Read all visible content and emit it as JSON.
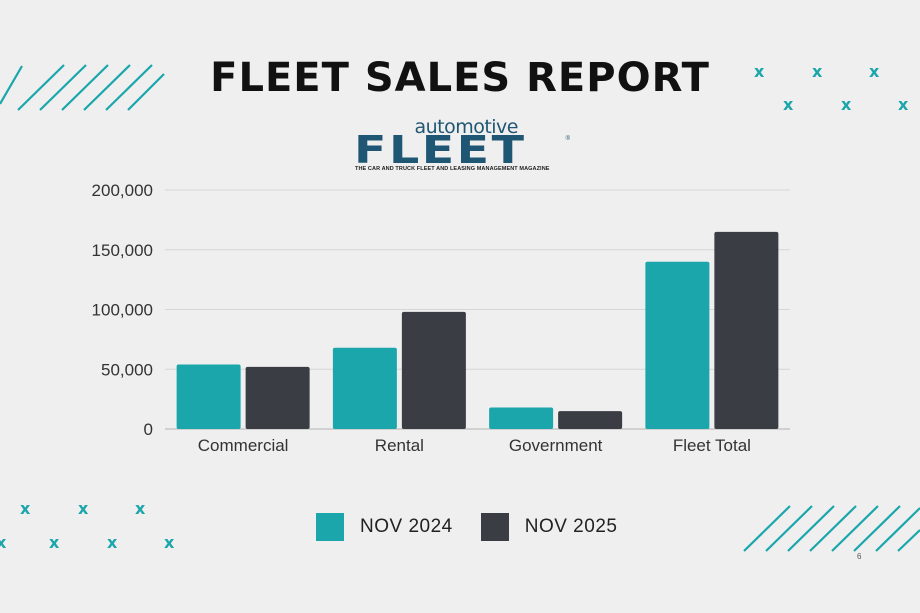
{
  "title": "FLEET SALES REPORT",
  "logo": {
    "line1": "automotive",
    "line2": "FLEET",
    "tagline": "THE CAR AND TRUCK FLEET AND LEASING MANAGEMENT MAGAZINE"
  },
  "page_number": "6",
  "colors": {
    "teal": "#1aa6ab",
    "dark": "#3a3d44",
    "background": "#efefef"
  },
  "chart_data": {
    "type": "bar",
    "title": "FLEET SALES REPORT",
    "categories": [
      "Commercial",
      "Rental",
      "Government",
      "Fleet Total"
    ],
    "series": [
      {
        "name": "NOV 2024",
        "color": "#1aa6ab",
        "values": [
          54000,
          68000,
          18000,
          140000
        ]
      },
      {
        "name": "NOV 2025",
        "color": "#3a3d44",
        "values": [
          52000,
          98000,
          15000,
          165000
        ]
      }
    ],
    "yticks": [
      0,
      50000,
      100000,
      150000,
      200000
    ],
    "ytick_labels": [
      "0",
      "50,000",
      "100,000",
      "150,000",
      "200,000"
    ],
    "ylim": [
      0,
      200000
    ],
    "xlabel": "",
    "ylabel": "",
    "grid": true,
    "legend": "bottom-center"
  }
}
